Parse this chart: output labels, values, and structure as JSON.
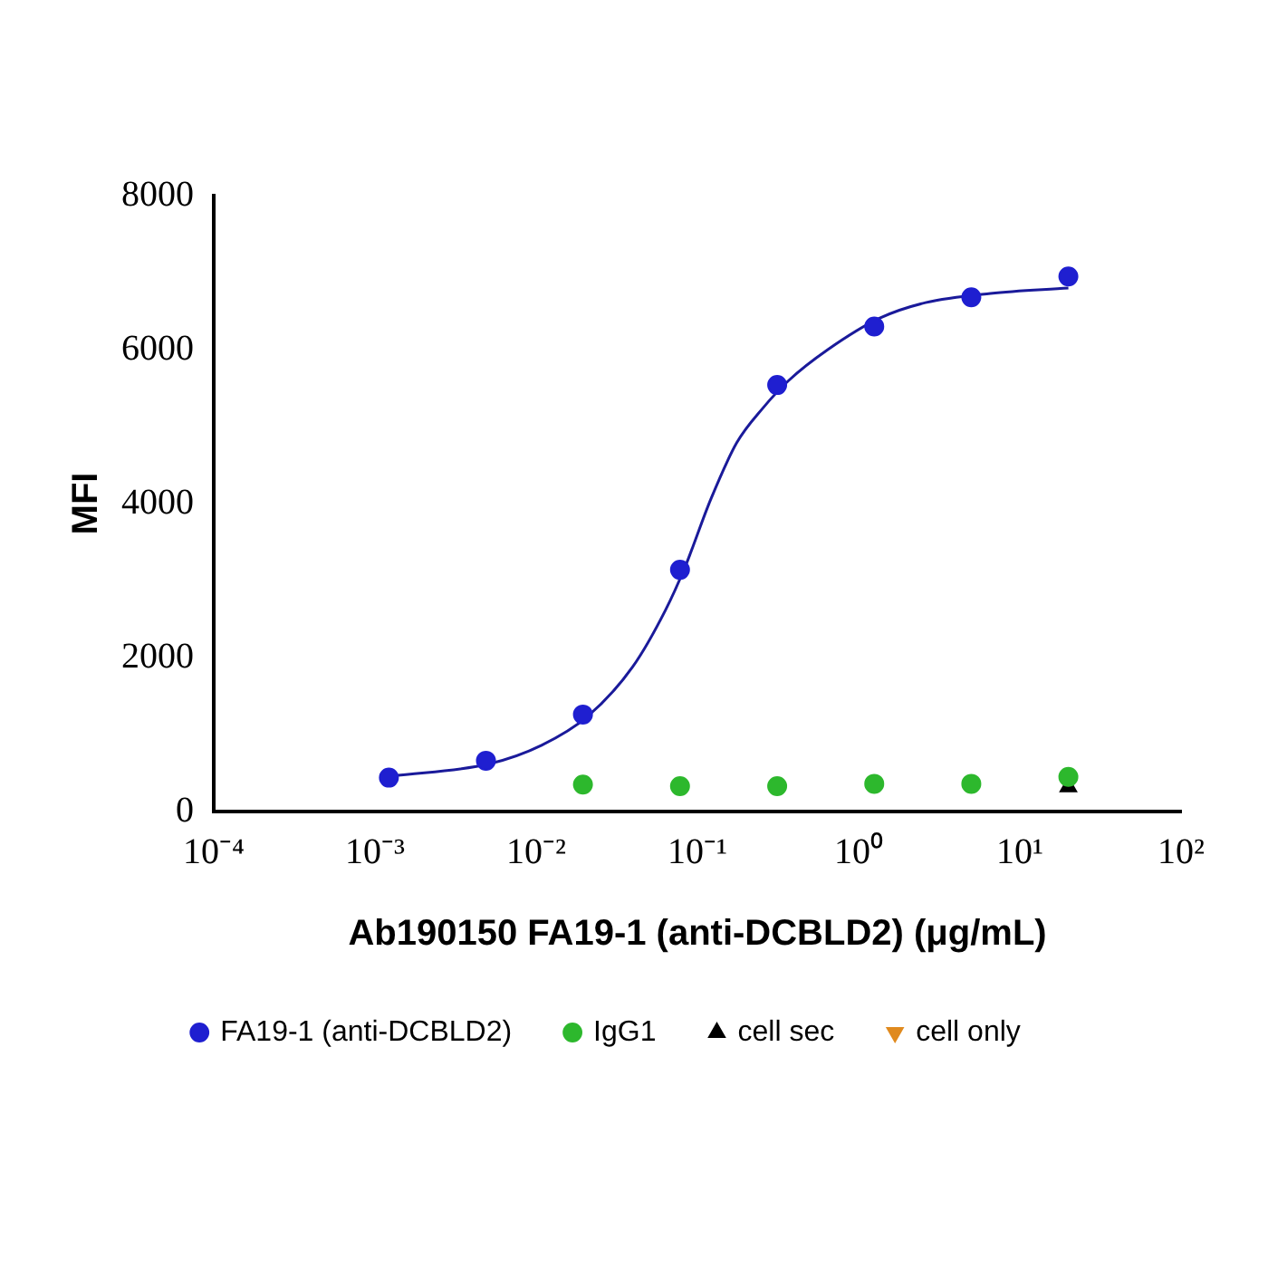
{
  "chart_data": {
    "type": "scatter",
    "xlabel": "Ab190150 FA19-1 (anti-DCBLD2) (μg/mL)",
    "ylabel": "MFI",
    "log": "x",
    "xlim": [
      0.0001,
      100
    ],
    "xticks": [
      {
        "value": 0.0001,
        "label": "10⁻⁴"
      },
      {
        "value": 0.001,
        "label": "10⁻³"
      },
      {
        "value": 0.01,
        "label": "10⁻²"
      },
      {
        "value": 0.1,
        "label": "10⁻¹"
      },
      {
        "value": 1,
        "label": "10⁰"
      },
      {
        "value": 10,
        "label": "10¹"
      },
      {
        "value": 100,
        "label": "10²"
      }
    ],
    "ylim": [
      0,
      8000
    ],
    "yticks": [
      0,
      2000,
      4000,
      6000,
      8000
    ],
    "grid": false,
    "legend": "bottom",
    "series": [
      {
        "name": "FA19-1 (anti-DCBLD2)",
        "color": "#1f1fd0",
        "marker": "circle",
        "x": [
          0.00122,
          0.00488,
          0.0195,
          0.078,
          0.3125,
          1.25,
          5,
          20
        ],
        "values": [
          440,
          660,
          1260,
          3140,
          5540,
          6300,
          6680,
          6950
        ]
      },
      {
        "name": "IgG1",
        "color": "#2db82d",
        "marker": "circle",
        "x": [
          0.0195,
          0.078,
          0.3125,
          1.25,
          5,
          20
        ],
        "values": [
          350,
          330,
          330,
          360,
          360,
          450
        ]
      },
      {
        "name": "cell sec",
        "color": "#000000",
        "marker": "triangle",
        "x": [
          20
        ],
        "values": [
          320
        ]
      },
      {
        "name": "cell only",
        "color": "#e08a1e",
        "marker": "triangle-down"
      },
      {
        "type": "line",
        "color": "#1a1a9a",
        "marker": "none",
        "line_style": "solid",
        "x": [
          0.00128,
          0.00514,
          0.0108,
          0.0207,
          0.0397,
          0.0632,
          0.0836,
          0.1213,
          0.1754,
          0.2547,
          0.369,
          0.644,
          1.356,
          2.6,
          6.58,
          20
        ],
        "values": [
          460,
          620,
          860,
          1230,
          1880,
          2610,
          3170,
          4060,
          4790,
          5240,
          5600,
          6000,
          6410,
          6610,
          6730,
          6800
        ]
      }
    ]
  }
}
